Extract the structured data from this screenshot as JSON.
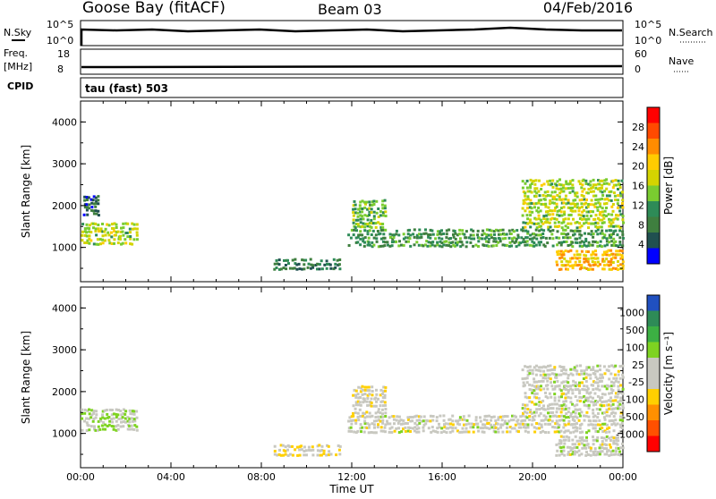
{
  "header": {
    "station": "Goose Bay (fitACF)",
    "beam": "Beam 03",
    "date": "04/Feb/2016"
  },
  "summary": {
    "nsky_label": "N.Sky",
    "nsky_ticks": [
      "10^5",
      "10^0"
    ],
    "nsearch_label": "N.Search",
    "nsearch_ticks": [
      "10^5",
      "10^0"
    ],
    "freq_label": "Freq.",
    "freq_unit": "[MHz]",
    "freq_ticks": [
      "18",
      "8"
    ],
    "nave_label": "Nave",
    "nave_ticks": [
      "60",
      "0"
    ],
    "cpid_label": "CPID",
    "cpid_value": "tau (fast) 503"
  },
  "chart_data": [
    {
      "type": "heatmap",
      "name": "power-panel",
      "ylabel": "Slant Range [km]",
      "xlabel": "",
      "ylim": [
        180,
        4500
      ],
      "yticks": [
        "4000",
        "3000",
        "2000",
        "1000"
      ],
      "xticks": [
        "00:00",
        "04:00",
        "08:00",
        "12:00",
        "16:00",
        "20:00",
        "00:00"
      ],
      "colorbar_label": "Power [dB]",
      "colorbar_ticks": [
        "28",
        "24",
        "20",
        "16",
        "12",
        "8",
        "4"
      ],
      "colorbar_colors": [
        "#ff0000",
        "#ff4a00",
        "#ff8c00",
        "#ffcc00",
        "#d4d400",
        "#7acc30",
        "#2e8b57",
        "#3f7f3f",
        "#205050",
        "#0000ff"
      ],
      "regions": [
        {
          "t0": 0.0,
          "t1": 2.5,
          "r0": 1100,
          "r1": 1650,
          "value": 16
        },
        {
          "t0": 0.1,
          "t1": 0.8,
          "r0": 1800,
          "r1": 2300,
          "value": 8
        },
        {
          "t0": 11.8,
          "t1": 24.0,
          "r0": 1050,
          "r1": 1500,
          "value": 12
        },
        {
          "t0": 12.0,
          "t1": 13.5,
          "r0": 1500,
          "r1": 2200,
          "value": 14
        },
        {
          "t0": 19.5,
          "t1": 24.0,
          "r0": 1500,
          "r1": 2700,
          "value": 16
        },
        {
          "t0": 21.0,
          "t1": 24.0,
          "r0": 500,
          "r1": 1000,
          "value": 20
        },
        {
          "t0": 8.5,
          "t1": 11.5,
          "r0": 500,
          "r1": 800,
          "value": 10
        }
      ]
    },
    {
      "type": "heatmap",
      "name": "velocity-panel",
      "ylabel": "Slant Range [km]",
      "xlabel": "Time UT",
      "ylim": [
        180,
        4500
      ],
      "yticks": [
        "4000",
        "3000",
        "2000",
        "1000"
      ],
      "xticks": [
        "00:00",
        "04:00",
        "08:00",
        "12:00",
        "16:00",
        "20:00",
        "00:00"
      ],
      "colorbar_label": "Velocity [m s⁻¹]",
      "colorbar_ticks": [
        "1000",
        "500",
        "100",
        "25",
        "-25",
        "-100",
        "-500",
        "-1000"
      ],
      "colorbar_colors": [
        "#2050c0",
        "#2e8b57",
        "#3cb043",
        "#7ed321",
        "#c8c8c0",
        "#c8c8c0",
        "#ffd000",
        "#ff9000",
        "#ff5000",
        "#ff0000"
      ],
      "regions": [
        {
          "t0": 0.0,
          "t1": 2.5,
          "r0": 1100,
          "r1": 1650,
          "value": 150
        },
        {
          "t0": 11.8,
          "t1": 24.0,
          "r0": 1050,
          "r1": 1500,
          "value": 0
        },
        {
          "t0": 19.5,
          "t1": 24.0,
          "r0": 1500,
          "r1": 2700,
          "value": 0
        },
        {
          "t0": 21.0,
          "t1": 24.0,
          "r0": 500,
          "r1": 1000,
          "value": 0
        },
        {
          "t0": 8.5,
          "t1": 11.5,
          "r0": 500,
          "r1": 800,
          "value": -150
        },
        {
          "t0": 12.0,
          "t1": 13.5,
          "r0": 1500,
          "r1": 2200,
          "value": -60
        }
      ]
    }
  ]
}
